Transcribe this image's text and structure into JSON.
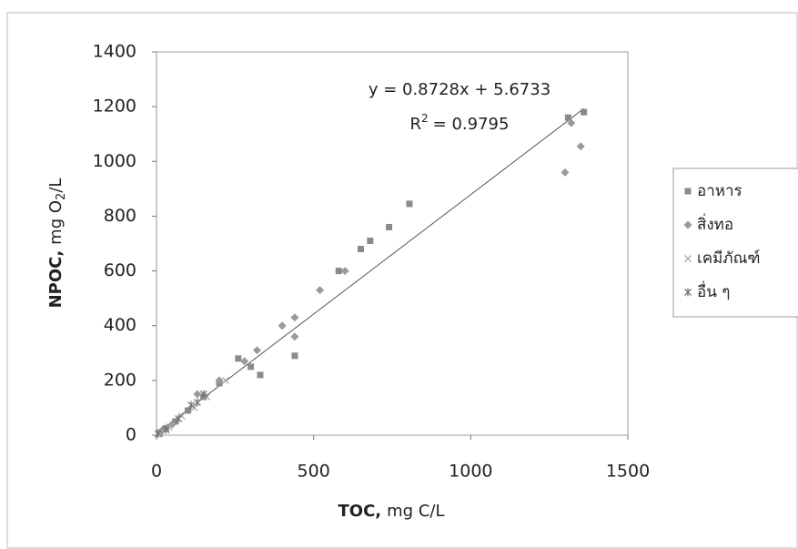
{
  "chart_data": {
    "type": "scatter",
    "xlabel": {
      "bold": "TOC,",
      "text": "mg C/L"
    },
    "ylabel": {
      "bold": "NPOC,",
      "text": "mg O",
      "sub": "2",
      "tail": "/L"
    },
    "equation": "y = 0.8728x + 5.6733",
    "r2": {
      "text": "R",
      "sup": "2",
      "tail": "= 0.9795"
    },
    "xlim": [
      0,
      1500
    ],
    "xticks": [
      0,
      500,
      1000,
      1500
    ],
    "ylim": [
      0,
      1400
    ],
    "yticks": [
      0,
      200,
      400,
      600,
      800,
      1000,
      1200,
      1400
    ],
    "trendline": {
      "x": [
        0,
        1360
      ],
      "y": [
        6,
        1193
      ],
      "color": "#555555"
    },
    "series": [
      {
        "name": "อาหาร",
        "marker": "square",
        "color": "#8a8a8a",
        "x": [
          10,
          30,
          60,
          100,
          150,
          200,
          260,
          300,
          330,
          440,
          580,
          650,
          680,
          740,
          805,
          1310,
          1360
        ],
        "values": [
          10,
          25,
          50,
          90,
          140,
          190,
          280,
          250,
          220,
          290,
          600,
          680,
          710,
          760,
          845,
          1160,
          1180
        ]
      },
      {
        "name": "สิ่งทอ",
        "marker": "diamond",
        "color": "#9a9a9a",
        "x": [
          20,
          50,
          130,
          200,
          280,
          320,
          400,
          440,
          440,
          520,
          600,
          1300,
          1320,
          1350
        ],
        "values": [
          20,
          40,
          150,
          200,
          270,
          310,
          400,
          360,
          430,
          530,
          600,
          960,
          1140,
          1055
        ]
      },
      {
        "name": "เคมีภัณฑ์",
        "marker": "x",
        "color": "#aaaaaa",
        "x": [
          10,
          40,
          80,
          120,
          160,
          220
        ],
        "values": [
          5,
          30,
          70,
          100,
          140,
          200
        ]
      },
      {
        "name": "อื่น ๆ",
        "marker": "asterisk",
        "color": "#777777",
        "x": [
          5,
          30,
          70,
          110,
          130,
          150
        ],
        "values": [
          5,
          20,
          60,
          110,
          120,
          150
        ]
      }
    ]
  }
}
